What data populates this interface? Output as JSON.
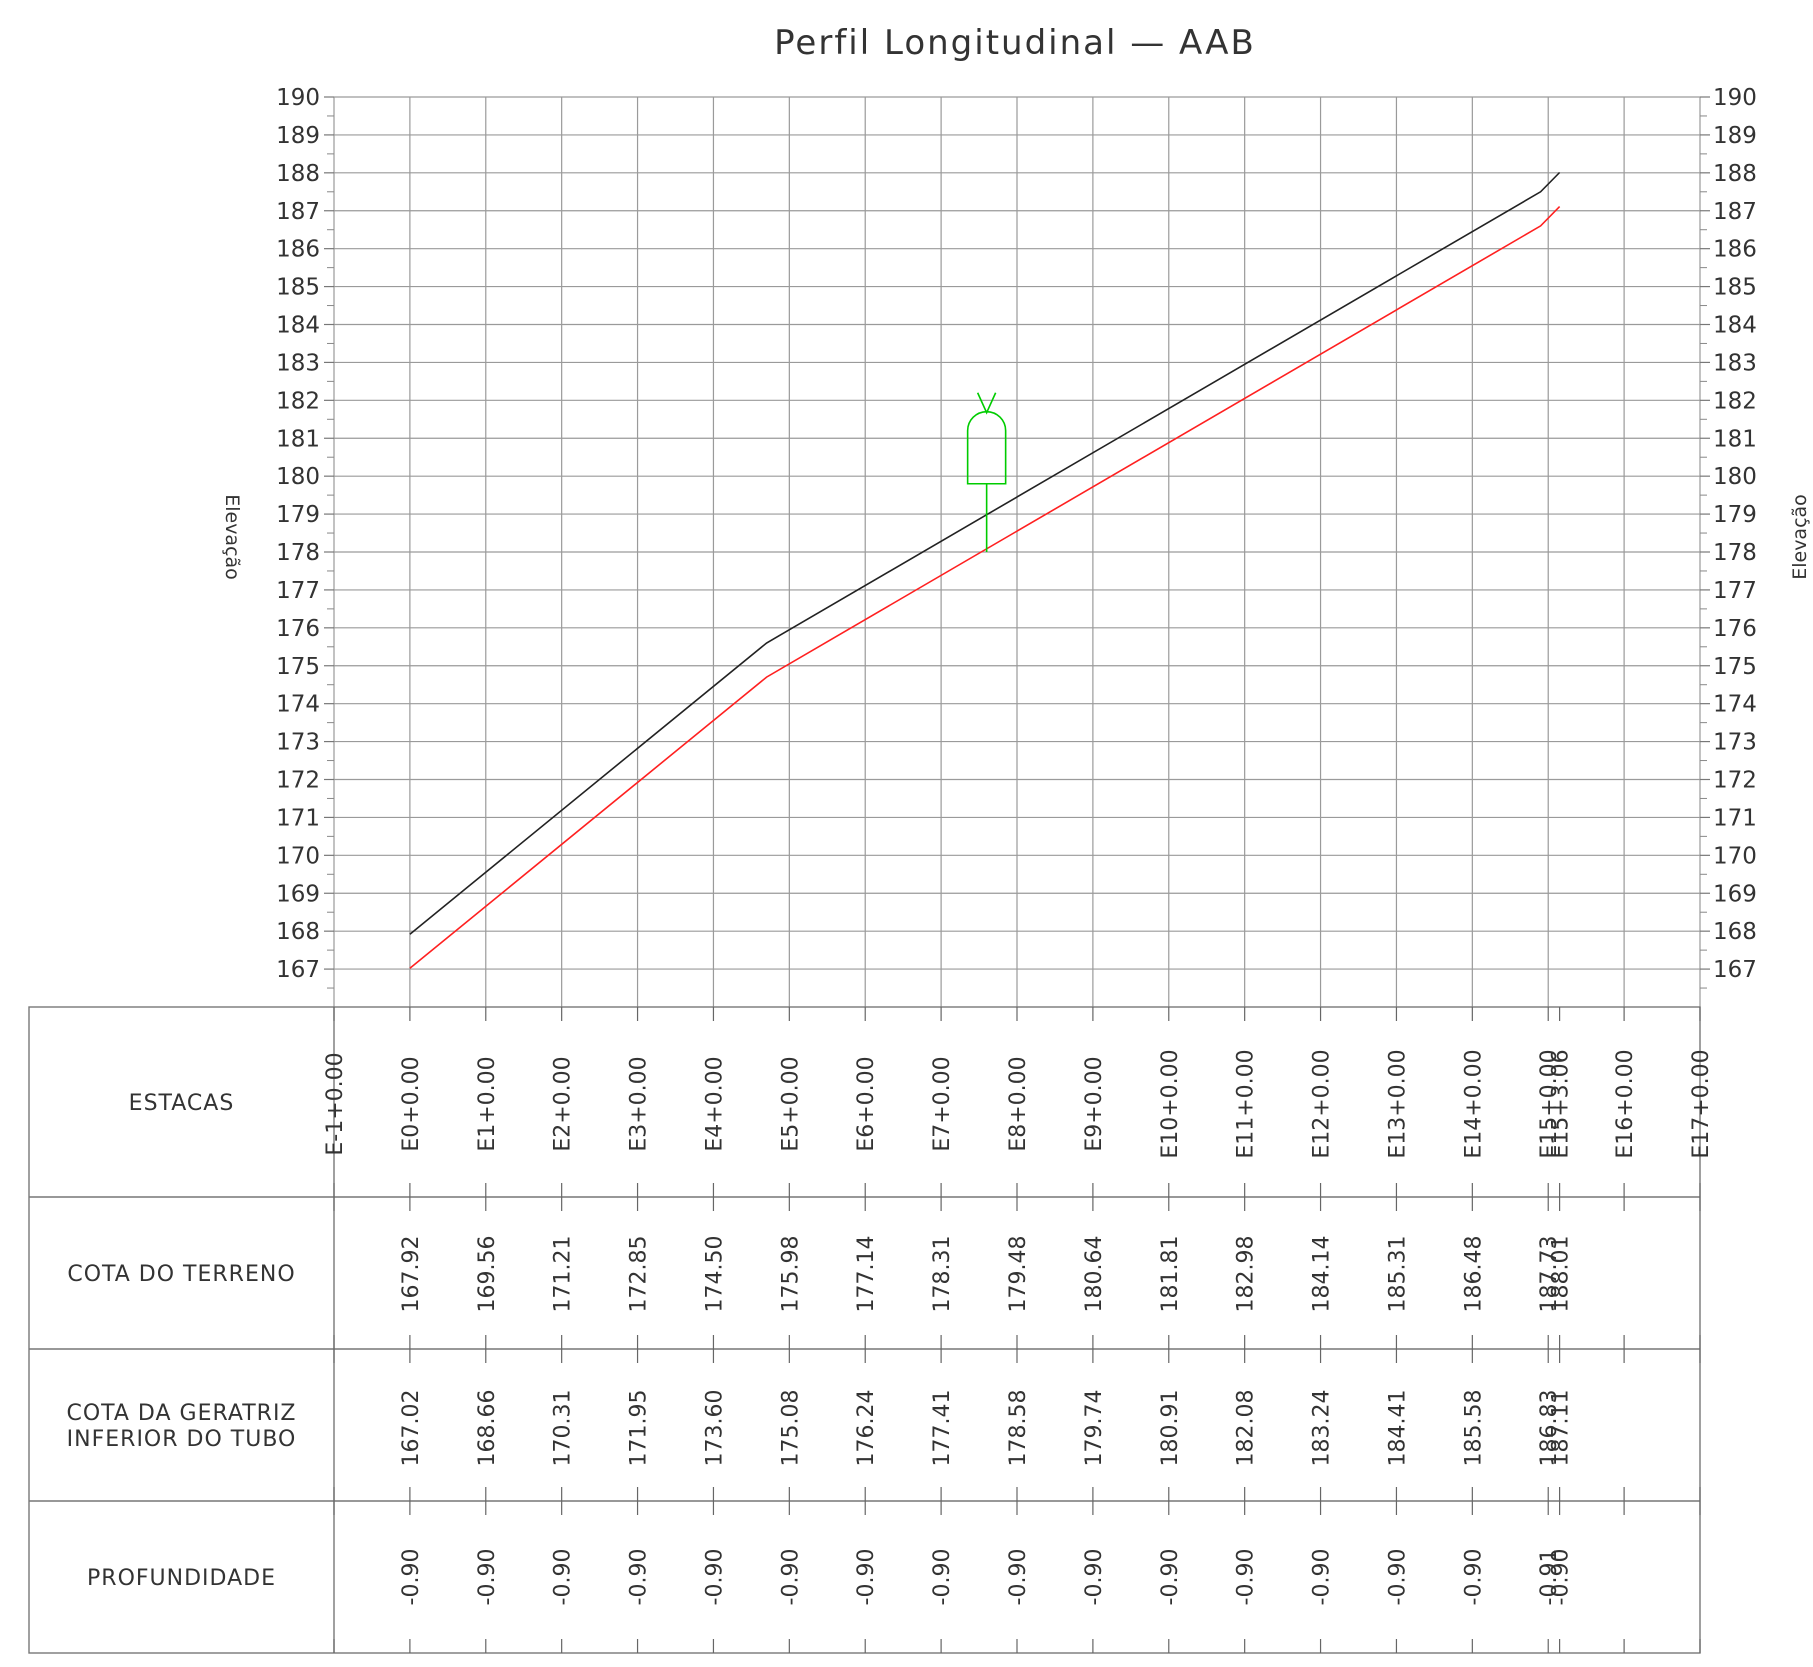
{
  "chart_data": {
    "type": "line",
    "title": "Perfil Longitudinal — AAB",
    "ylabel": "Elevação",
    "ylim": [
      166,
      190
    ],
    "y_ticks": [
      167,
      168,
      169,
      170,
      171,
      172,
      173,
      174,
      175,
      176,
      177,
      178,
      179,
      180,
      181,
      182,
      183,
      184,
      185,
      186,
      187,
      188,
      189,
      190
    ],
    "xlim": [
      -1,
      17
    ],
    "grid": true,
    "stations": [
      {
        "x": -1,
        "label": "E-1+0.00"
      },
      {
        "x": 0,
        "label": "E0+0.00"
      },
      {
        "x": 1,
        "label": "E1+0.00"
      },
      {
        "x": 2,
        "label": "E2+0.00"
      },
      {
        "x": 3,
        "label": "E3+0.00"
      },
      {
        "x": 4,
        "label": "E4+0.00"
      },
      {
        "x": 5,
        "label": "E5+0.00"
      },
      {
        "x": 6,
        "label": "E6+0.00"
      },
      {
        "x": 7,
        "label": "E7+0.00"
      },
      {
        "x": 8,
        "label": "E8+0.00"
      },
      {
        "x": 9,
        "label": "E9+0.00"
      },
      {
        "x": 10,
        "label": "E10+0.00"
      },
      {
        "x": 11,
        "label": "E11+0.00"
      },
      {
        "x": 12,
        "label": "E12+0.00"
      },
      {
        "x": 13,
        "label": "E13+0.00"
      },
      {
        "x": 14,
        "label": "E14+0.00"
      },
      {
        "x": 15,
        "label": "E15+0.00"
      },
      {
        "x": 15.15,
        "label": "E15+3.06"
      },
      {
        "x": 16,
        "label": "E16+0.00"
      },
      {
        "x": 17,
        "label": "E17+0.00"
      }
    ],
    "series": [
      {
        "color": "#222222",
        "points": [
          [
            0,
            167.92
          ],
          [
            4.7,
            175.6
          ],
          [
            14.9,
            187.5
          ],
          [
            15.15,
            188.01
          ]
        ]
      },
      {
        "color": "#ff2020",
        "points": [
          [
            0,
            167.02
          ],
          [
            4.7,
            174.7
          ],
          [
            14.9,
            186.6
          ],
          [
            15.15,
            187.11
          ]
        ]
      }
    ],
    "marker": {
      "color": "#00cc00",
      "x": 7.6,
      "y_bottom": 178.0,
      "y_body_bottom": 179.8,
      "y_body_top": 181.2,
      "y_top": 182.2
    },
    "table": {
      "rows": [
        {
          "label_lines": [
            "ESTACAS"
          ],
          "entries": []
        },
        {
          "label_lines": [
            "COTA DO TERRENO"
          ],
          "entries": [
            {
              "x": 0,
              "text": "167.92"
            },
            {
              "x": 1,
              "text": "169.56"
            },
            {
              "x": 2,
              "text": "171.21"
            },
            {
              "x": 3,
              "text": "172.85"
            },
            {
              "x": 4,
              "text": "174.50"
            },
            {
              "x": 5,
              "text": "175.98"
            },
            {
              "x": 6,
              "text": "177.14"
            },
            {
              "x": 7,
              "text": "178.31"
            },
            {
              "x": 8,
              "text": "179.48"
            },
            {
              "x": 9,
              "text": "180.64"
            },
            {
              "x": 10,
              "text": "181.81"
            },
            {
              "x": 11,
              "text": "182.98"
            },
            {
              "x": 12,
              "text": "184.14"
            },
            {
              "x": 13,
              "text": "185.31"
            },
            {
              "x": 14,
              "text": "186.48"
            },
            {
              "x": 15,
              "text": "187.73"
            },
            {
              "x": 15.15,
              "text": "188.01"
            }
          ]
        },
        {
          "label_lines": [
            "COTA DA GERATRIZ",
            "INFERIOR DO TUBO"
          ],
          "entries": [
            {
              "x": 0,
              "text": "167.02"
            },
            {
              "x": 1,
              "text": "168.66"
            },
            {
              "x": 2,
              "text": "170.31"
            },
            {
              "x": 3,
              "text": "171.95"
            },
            {
              "x": 4,
              "text": "173.60"
            },
            {
              "x": 5,
              "text": "175.08"
            },
            {
              "x": 6,
              "text": "176.24"
            },
            {
              "x": 7,
              "text": "177.41"
            },
            {
              "x": 8,
              "text": "178.58"
            },
            {
              "x": 9,
              "text": "179.74"
            },
            {
              "x": 10,
              "text": "180.91"
            },
            {
              "x": 11,
              "text": "182.08"
            },
            {
              "x": 12,
              "text": "183.24"
            },
            {
              "x": 13,
              "text": "184.41"
            },
            {
              "x": 14,
              "text": "185.58"
            },
            {
              "x": 15,
              "text": "186.83"
            },
            {
              "x": 15.15,
              "text": "187.11"
            }
          ]
        },
        {
          "label_lines": [
            "PROFUNDIDADE"
          ],
          "entries": [
            {
              "x": 0,
              "text": "-0.90"
            },
            {
              "x": 1,
              "text": "-0.90"
            },
            {
              "x": 2,
              "text": "-0.90"
            },
            {
              "x": 3,
              "text": "-0.90"
            },
            {
              "x": 4,
              "text": "-0.90"
            },
            {
              "x": 5,
              "text": "-0.90"
            },
            {
              "x": 6,
              "text": "-0.90"
            },
            {
              "x": 7,
              "text": "-0.90"
            },
            {
              "x": 8,
              "text": "-0.90"
            },
            {
              "x": 9,
              "text": "-0.90"
            },
            {
              "x": 10,
              "text": "-0.90"
            },
            {
              "x": 11,
              "text": "-0.90"
            },
            {
              "x": 12,
              "text": "-0.90"
            },
            {
              "x": 13,
              "text": "-0.90"
            },
            {
              "x": 14,
              "text": "-0.90"
            },
            {
              "x": 15,
              "text": "-0.91"
            },
            {
              "x": 15.15,
              "text": "-0.90"
            }
          ]
        }
      ]
    }
  }
}
